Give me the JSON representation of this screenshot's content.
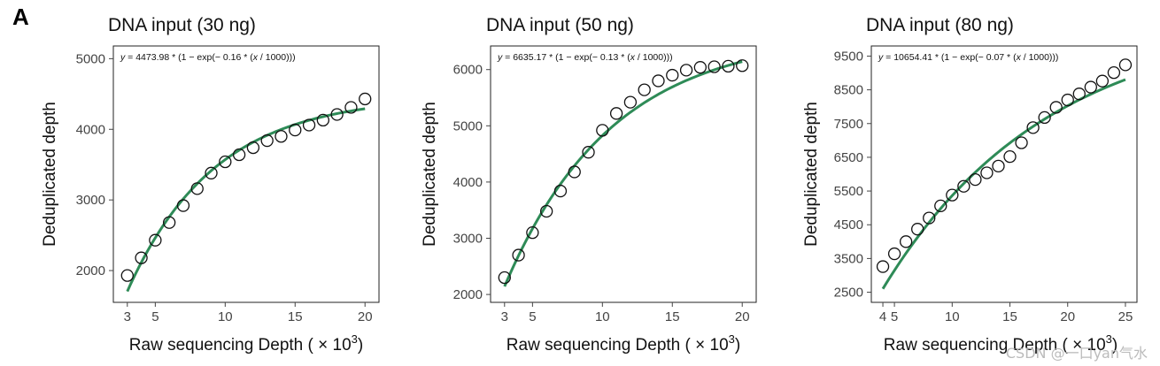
{
  "figure": {
    "panel_letter": "A",
    "watermark": "CSDN @一口yan气水"
  },
  "chart_data": [
    {
      "type": "scatter",
      "title": "DNA input (30 ng)",
      "equation": {
        "prefix": "y",
        "text": " = 4473.98 * (1 − exp(− 0.16 * (",
        "var": "x",
        "suffix": " / 1000)))"
      },
      "xlabel": "Raw sequencing Depth ( × 10",
      "xlabel_exp": "3",
      "xlabel_close": ")",
      "ylabel": "Deduplicated depth",
      "xlim": [
        2,
        21
      ],
      "ylim": [
        1550,
        5180
      ],
      "x_ticks": [
        3,
        5,
        10,
        15,
        20
      ],
      "y_ticks": [
        2000,
        3000,
        4000,
        5000
      ],
      "fit": {
        "a": 4473.98,
        "b": 0.16,
        "x_from": 3,
        "x_to": 20,
        "color": "#2e8b57"
      },
      "series": [
        {
          "x": [
            3,
            4,
            5,
            6,
            7,
            8,
            9,
            10,
            11,
            12,
            13,
            14,
            15,
            16,
            17,
            18,
            19,
            20
          ],
          "y": [
            1930,
            2180,
            2430,
            2680,
            2920,
            3160,
            3380,
            3540,
            3640,
            3740,
            3840,
            3900,
            3990,
            4060,
            4130,
            4210,
            4310,
            4430
          ]
        }
      ]
    },
    {
      "type": "scatter",
      "title": "DNA input (50 ng)",
      "equation": {
        "prefix": "y",
        "text": " = 6635.17 * (1 − exp(− 0.13 * (",
        "var": "x",
        "suffix": " / 1000)))"
      },
      "xlabel": "Raw sequencing Depth ( × 10",
      "xlabel_exp": "3",
      "xlabel_close": ")",
      "ylabel": "Deduplicated depth",
      "xlim": [
        2,
        21
      ],
      "ylim": [
        1860,
        6420
      ],
      "x_ticks": [
        3,
        5,
        10,
        15,
        20
      ],
      "y_ticks": [
        2000,
        3000,
        4000,
        5000,
        6000
      ],
      "fit": {
        "a": 6635.17,
        "b": 0.13,
        "x_from": 3,
        "x_to": 20,
        "color": "#2e8b57"
      },
      "series": [
        {
          "x": [
            3,
            4,
            5,
            6,
            7,
            8,
            9,
            10,
            11,
            12,
            13,
            14,
            15,
            16,
            17,
            18,
            19,
            20
          ],
          "y": [
            2300,
            2700,
            3100,
            3480,
            3840,
            4180,
            4530,
            4920,
            5220,
            5420,
            5640,
            5800,
            5900,
            5990,
            6040,
            6050,
            6060,
            6070
          ]
        }
      ]
    },
    {
      "type": "scatter",
      "title": "DNA input (80 ng)",
      "equation": {
        "prefix": "y",
        "text": " = 10654.41 * (1 − exp(− 0.07 * (",
        "var": "x",
        "suffix": " / 1000)))"
      },
      "xlabel": "Raw sequencing Depth ( × 10",
      "xlabel_exp": "3",
      "xlabel_close": ")",
      "ylabel": "Deduplicated depth",
      "xlim": [
        3,
        26
      ],
      "ylim": [
        2200,
        9800
      ],
      "x_ticks": [
        4,
        5,
        10,
        15,
        20,
        25
      ],
      "y_ticks": [
        2500,
        3500,
        4500,
        5500,
        6500,
        7500,
        8500,
        9500
      ],
      "fit": {
        "a": 10654.41,
        "b": 0.07,
        "x_from": 4,
        "x_to": 25,
        "color": "#2e8b57"
      },
      "series": [
        {
          "x": [
            4,
            5,
            6,
            7,
            8,
            9,
            10,
            11,
            12,
            13,
            14,
            15,
            16,
            17,
            18,
            19,
            20,
            21,
            22,
            23,
            24,
            25
          ],
          "y": [
            3260,
            3640,
            4000,
            4370,
            4700,
            5060,
            5380,
            5640,
            5840,
            6040,
            6240,
            6520,
            6930,
            7380,
            7680,
            7980,
            8200,
            8380,
            8580,
            8760,
            9010,
            9240
          ]
        }
      ]
    }
  ]
}
